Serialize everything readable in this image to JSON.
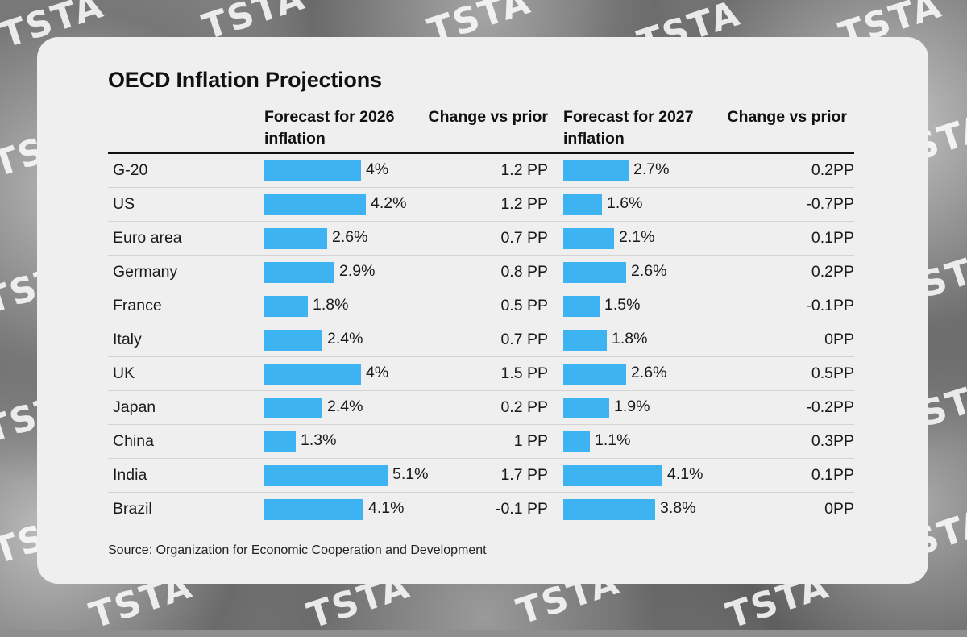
{
  "watermark": {
    "text": "TSTA"
  },
  "chart_data": {
    "type": "bar",
    "title": "OECD Inflation Projections",
    "columns": {
      "forecast_2026": "Forecast for 2026 inflation",
      "change_2026": "Change vs prior",
      "forecast_2027": "Forecast for 2027 inflation",
      "change_2027": "Change vs prior"
    },
    "categories": [
      "G-20",
      "US",
      "Euro area",
      "Germany",
      "France",
      "Italy",
      "UK",
      "Japan",
      "China",
      "India",
      "Brazil"
    ],
    "series": [
      {
        "name": "Forecast for 2026 inflation",
        "values": [
          4,
          4.2,
          2.6,
          2.9,
          1.8,
          2.4,
          4,
          2.4,
          1.3,
          5.1,
          4.1
        ],
        "labels": [
          "4%",
          "4.2%",
          "2.6%",
          "2.9%",
          "1.8%",
          "2.4%",
          "4%",
          "2.4%",
          "1.3%",
          "5.1%",
          "4.1%"
        ]
      },
      {
        "name": "Forecast for 2027 inflation",
        "values": [
          2.7,
          1.6,
          2.1,
          2.6,
          1.5,
          1.8,
          2.6,
          1.9,
          1.1,
          4.1,
          3.8
        ],
        "labels": [
          "2.7%",
          "1.6%",
          "2.1%",
          "2.6%",
          "1.5%",
          "1.8%",
          "2.6%",
          "1.9%",
          "1.1%",
          "4.1%",
          "3.8%"
        ]
      }
    ],
    "change_2026": [
      "1.2 PP",
      "1.2 PP",
      "0.7 PP",
      "0.8 PP",
      "0.5 PP",
      "0.7 PP",
      "1.5 PP",
      "0.2 PP",
      "1 PP",
      "1.7 PP",
      "-0.1 PP"
    ],
    "change_2027": [
      "0.2PP",
      "-0.7PP",
      "0.1PP",
      "0.2PP",
      "-0.1PP",
      "0PP",
      "0.5PP",
      "-0.2PP",
      "0.3PP",
      "0.1PP",
      "0PP"
    ],
    "bar_color": "#3db3f2",
    "source": "Source: Organization for Economic Cooperation and Development"
  }
}
